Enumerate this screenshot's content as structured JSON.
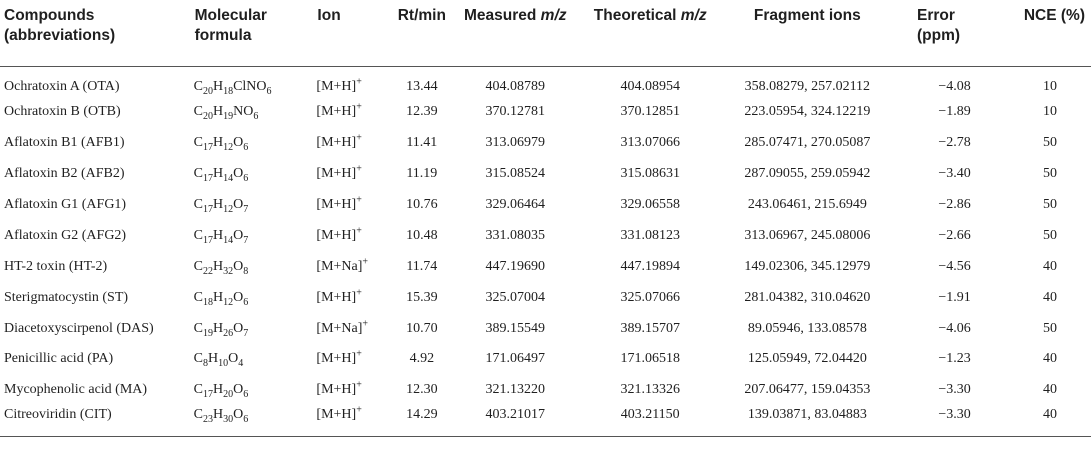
{
  "headers": {
    "compounds_line1": "Compounds",
    "compounds_line2": "(abbreviations)",
    "formula_line1": "Molecular",
    "formula_line2": "formula",
    "ion": "Ion",
    "rt": "Rt/min",
    "measured_prefix": "Measured ",
    "measured_mz": "m/z",
    "theoretical_prefix": "Theoretical ",
    "theoretical_mz": "m/z",
    "fragments": "Fragment ions",
    "error_line1": "Error",
    "error_line2": "(ppm)",
    "nce": "NCE (%)"
  },
  "rows": [
    {
      "compound": "Ochratoxin A (OTA)",
      "formula": [
        [
          "C",
          "20"
        ],
        [
          "H",
          "18"
        ],
        [
          "ClNO",
          "6"
        ]
      ],
      "ion_base": "[M+H]",
      "ion_charge": "+",
      "rt": "13.44",
      "measured": "404.08789",
      "theoretical": "404.08954",
      "fragments": "358.08279, 257.02112",
      "error": "−4.08",
      "nce": "10"
    },
    {
      "compound": "Ochratoxin B (OTB)",
      "formula": [
        [
          "C",
          "20"
        ],
        [
          "H",
          "19"
        ],
        [
          "NO",
          "6"
        ]
      ],
      "ion_base": "[M+H]",
      "ion_charge": "+",
      "rt": "12.39",
      "measured": "370.12781",
      "theoretical": "370.12851",
      "fragments": "223.05954, 324.12219",
      "error": "−1.89",
      "nce": "10"
    },
    {
      "compound": "Aflatoxin B1 (AFB1)",
      "formula": [
        [
          "C",
          "17"
        ],
        [
          "H",
          "12"
        ],
        [
          "O",
          "6"
        ]
      ],
      "ion_base": "[M+H]",
      "ion_charge": "+",
      "rt": "11.41",
      "measured": "313.06979",
      "theoretical": "313.07066",
      "fragments": "285.07471, 270.05087",
      "error": "−2.78",
      "nce": "50"
    },
    {
      "compound": "Aflatoxin B2 (AFB2)",
      "formula": [
        [
          "C",
          "17"
        ],
        [
          "H",
          "14"
        ],
        [
          "O",
          "6"
        ]
      ],
      "ion_base": "[M+H]",
      "ion_charge": "+",
      "rt": "11.19",
      "measured": "315.08524",
      "theoretical": "315.08631",
      "fragments": "287.09055, 259.05942",
      "error": "−3.40",
      "nce": "50"
    },
    {
      "compound": "Aflatoxin G1 (AFG1)",
      "formula": [
        [
          "C",
          "17"
        ],
        [
          "H",
          "12"
        ],
        [
          "O",
          "7"
        ]
      ],
      "ion_base": "[M+H]",
      "ion_charge": "+",
      "rt": "10.76",
      "measured": "329.06464",
      "theoretical": "329.06558",
      "fragments": "243.06461, 215.6949",
      "error": "−2.86",
      "nce": "50"
    },
    {
      "compound": "Aflatoxin G2 (AFG2)",
      "formula": [
        [
          "C",
          "17"
        ],
        [
          "H",
          "14"
        ],
        [
          "O",
          "7"
        ]
      ],
      "ion_base": "[M+H]",
      "ion_charge": "+",
      "rt": "10.48",
      "measured": "331.08035",
      "theoretical": "331.08123",
      "fragments": "313.06967, 245.08006",
      "error": "−2.66",
      "nce": "50"
    },
    {
      "compound": "HT-2 toxin (HT-2)",
      "formula": [
        [
          "C",
          "22"
        ],
        [
          "H",
          "32"
        ],
        [
          "O",
          "8"
        ]
      ],
      "ion_base": "[M+Na]",
      "ion_charge": "+",
      "rt": "11.74",
      "measured": "447.19690",
      "theoretical": "447.19894",
      "fragments": "149.02306, 345.12979",
      "error": "−4.56",
      "nce": "40"
    },
    {
      "compound": "Sterigmatocystin (ST)",
      "formula": [
        [
          "C",
          "18"
        ],
        [
          "H",
          "12"
        ],
        [
          "O",
          "6"
        ]
      ],
      "ion_base": "[M+H]",
      "ion_charge": "+",
      "rt": "15.39",
      "measured": "325.07004",
      "theoretical": "325.07066",
      "fragments": "281.04382, 310.04620",
      "error": "−1.91",
      "nce": "40"
    },
    {
      "compound": "Diacetoxyscirpenol (DAS)",
      "formula": [
        [
          "C",
          "19"
        ],
        [
          "H",
          "26"
        ],
        [
          "O",
          "7"
        ]
      ],
      "ion_base": "[M+Na]",
      "ion_charge": "+",
      "rt": "10.70",
      "measured": "389.15549",
      "theoretical": "389.15707",
      "fragments": "89.05946, 133.08578",
      "error": "−4.06",
      "nce": "50"
    },
    {
      "compound": "Penicillic acid (PA)",
      "formula": [
        [
          "C",
          "8"
        ],
        [
          "H",
          "10"
        ],
        [
          "O",
          "4"
        ]
      ],
      "ion_base": "[M+H]",
      "ion_charge": "+",
      "rt": "4.92",
      "measured": "171.06497",
      "theoretical": "171.06518",
      "fragments": "125.05949, 72.04420",
      "error": "−1.23",
      "nce": "40"
    },
    {
      "compound": "Mycophenolic acid (MA)",
      "formula": [
        [
          "C",
          "17"
        ],
        [
          "H",
          "20"
        ],
        [
          "O",
          "6"
        ]
      ],
      "ion_base": "[M+H]",
      "ion_charge": "+",
      "rt": "12.30",
      "measured": "321.13220",
      "theoretical": "321.13326",
      "fragments": "207.06477, 159.04353",
      "error": "−3.30",
      "nce": "40"
    },
    {
      "compound": "Citreoviridin (CIT)",
      "formula": [
        [
          "C",
          "23"
        ],
        [
          "H",
          "30"
        ],
        [
          "O",
          "6"
        ]
      ],
      "ion_base": "[M+H]",
      "ion_charge": "+",
      "rt": "14.29",
      "measured": "403.21017",
      "theoretical": "403.21150",
      "fragments": "139.03871, 83.04883",
      "error": "−3.30",
      "nce": "40"
    }
  ]
}
